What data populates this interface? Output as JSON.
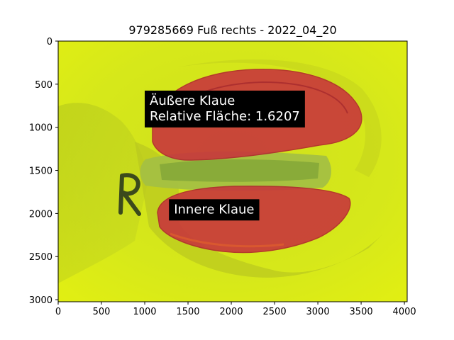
{
  "chart_data": {
    "type": "image",
    "title": "979285669 Fuß rechts - 2022_04_20",
    "xlabel": "",
    "ylabel": "",
    "xlim": [
      0,
      4032
    ],
    "ylim": [
      3024,
      0
    ],
    "y_inverted": true,
    "grid": false,
    "xticks": [
      0,
      500,
      1000,
      1500,
      2000,
      2500,
      3000,
      3500,
      4000
    ],
    "yticks": [
      0,
      500,
      1000,
      1500,
      2000,
      2500,
      3000
    ],
    "image_description": "photo of a cattle hoof sole on a yellow-green background with the two claws highlighted by semi-transparent red masks",
    "regions": [
      {
        "name": "Äußere Klaue",
        "color": "#c8323c"
      },
      {
        "name": "Innere Klaue",
        "color": "#c8323c"
      }
    ],
    "annotations": [
      {
        "lines": [
          "Äußere Klaue",
          "Relative Fläche: 1.6207"
        ],
        "x": 1000,
        "y": 780
      },
      {
        "lines": [
          "Innere Klaue"
        ],
        "x": 1280,
        "y": 1950
      }
    ],
    "colors": {
      "background": "#d9e816",
      "mask": "#c8323c",
      "annotation_box": "#000000",
      "annotation_text": "#ffffff"
    }
  }
}
